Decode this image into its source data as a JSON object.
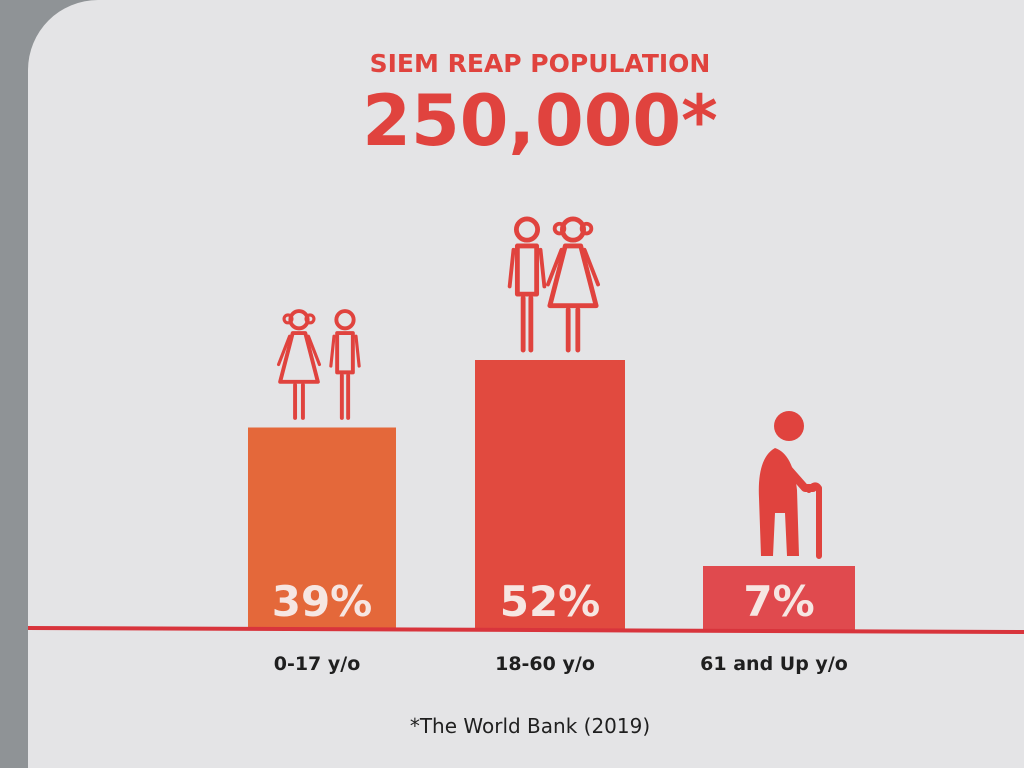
{
  "chart_data": {
    "type": "bar",
    "title": "SIEM REAP POPULATION",
    "total": "250,000*",
    "categories": [
      "0-17 y/o",
      "18-60 y/o",
      "61 and Up y/o"
    ],
    "values": [
      39,
      52,
      7
    ],
    "value_labels": [
      "39%",
      "52%",
      "7%"
    ],
    "unit": "%",
    "icons": [
      [
        "girl-icon",
        "boy-icon"
      ],
      [
        "man-icon",
        "woman-icon"
      ],
      [
        "elderly-person-with-cane-icon"
      ]
    ],
    "bar_colors": [
      "#e4683a",
      "#e14a3f",
      "#e04a4e"
    ],
    "source": "*The World Bank (2019)",
    "grid": false
  },
  "colors": {
    "accent": "#e0433e",
    "axis": "#d8343c",
    "label_text": "#1f1f1f",
    "value_text": "#f6e6e2"
  }
}
